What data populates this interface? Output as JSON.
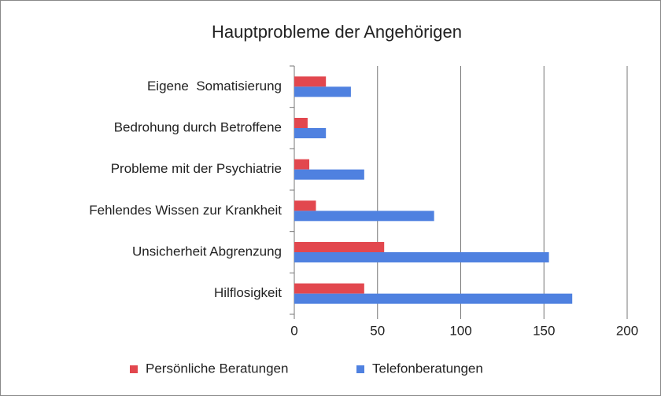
{
  "chart_data": {
    "type": "hbar",
    "title": "Hauptprobleme der Angehörigen",
    "categories": [
      "Eigene  Somatisierung",
      "Bedrohung durch Betroffene",
      "Probleme mit der Psychiatrie",
      "Fehlendes Wissen zur Krankheit",
      "Unsicherheit Abgrenzung",
      "Hilflosigkeit"
    ],
    "series": [
      {
        "name": "Persönliche Beratungen",
        "color": "#e2474e",
        "values": [
          19,
          8,
          9,
          13,
          54,
          42
        ]
      },
      {
        "name": "Telefonberatungen",
        "color": "#4f81e0",
        "values": [
          34,
          19,
          42,
          84,
          153,
          167
        ]
      }
    ],
    "xlim": [
      0,
      200
    ],
    "xticks": [
      0,
      50,
      100,
      150,
      200
    ],
    "grid": true,
    "legend": "bottom"
  }
}
